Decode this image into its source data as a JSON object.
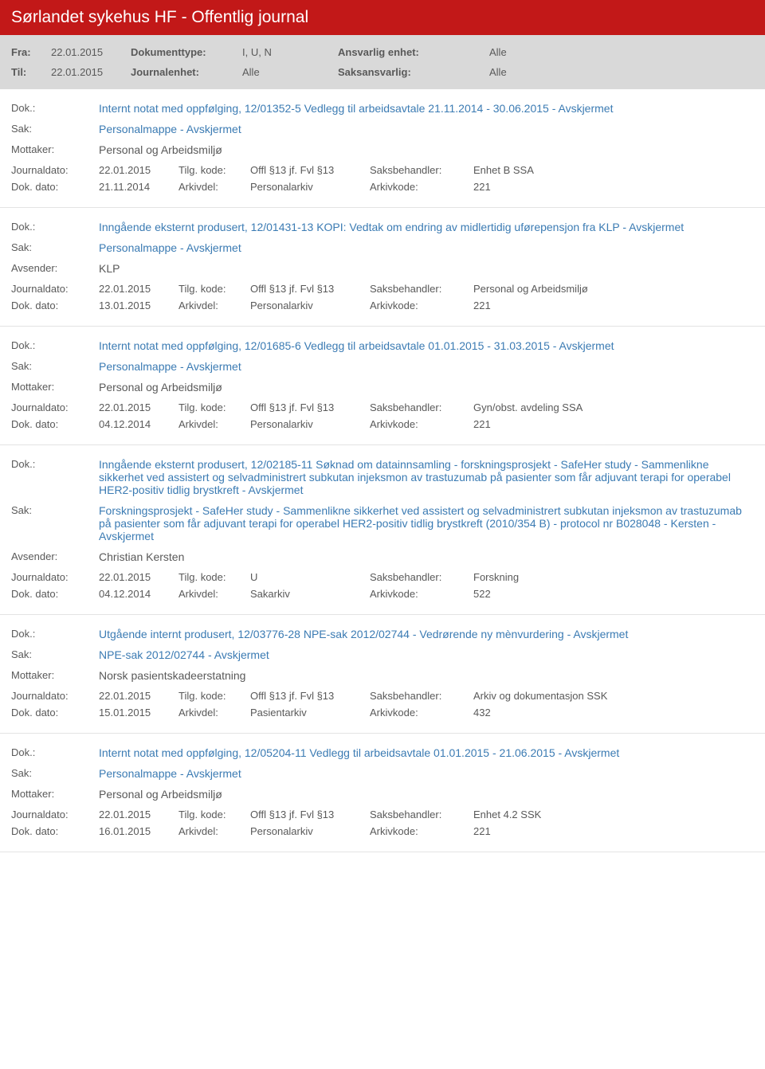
{
  "header": {
    "title": "Sørlandet sykehus HF - Offentlig journal",
    "fra_label": "Fra:",
    "fra_value": "22.01.2015",
    "til_label": "Til:",
    "til_value": "22.01.2015",
    "doktype_label": "Dokumenttype:",
    "doktype_value": "I, U, N",
    "journalenhet_label": "Journalenhet:",
    "journalenhet_value": "Alle",
    "ansvarlig_label": "Ansvarlig enhet:",
    "ansvarlig_value": "Alle",
    "saksansvarlig_label": "Saksansvarlig:",
    "saksansvarlig_value": "Alle"
  },
  "labels": {
    "dok": "Dok.:",
    "sak": "Sak:",
    "mottaker": "Mottaker:",
    "avsender": "Avsender:",
    "journaldato": "Journaldato:",
    "dokdato": "Dok. dato:",
    "tilgkode": "Tilg. kode:",
    "arkivdel": "Arkivdel:",
    "saksbehandler": "Saksbehandler:",
    "arkivkode": "Arkivkode:"
  },
  "entries": [
    {
      "dok": "Internt notat med oppfølging, 12/01352-5 Vedlegg til arbeidsavtale 21.11.2014 - 30.06.2015 - Avskjermet",
      "sak": "Personalmappe - Avskjermet",
      "party_label": "Mottaker:",
      "party_value": "Personal og Arbeidsmiljø",
      "journaldato": "22.01.2015",
      "tilgkode": "Offl §13 jf. Fvl §13",
      "saksbehandler": "Enhet B SSA",
      "dokdato": "21.11.2014",
      "arkivdel": "Personalarkiv",
      "arkivkode": "221"
    },
    {
      "dok": "Inngående eksternt produsert, 12/01431-13 KOPI: Vedtak om endring av midlertidig uførepensjon fra KLP - Avskjermet",
      "sak": "Personalmappe - Avskjermet",
      "party_label": "Avsender:",
      "party_value": "KLP",
      "journaldato": "22.01.2015",
      "tilgkode": "Offl §13 jf. Fvl §13",
      "saksbehandler": "Personal og Arbeidsmiljø",
      "dokdato": "13.01.2015",
      "arkivdel": "Personalarkiv",
      "arkivkode": "221"
    },
    {
      "dok": "Internt notat med oppfølging, 12/01685-6 Vedlegg til arbeidsavtale 01.01.2015 - 31.03.2015 - Avskjermet",
      "sak": "Personalmappe - Avskjermet",
      "party_label": "Mottaker:",
      "party_value": "Personal og Arbeidsmiljø",
      "journaldato": "22.01.2015",
      "tilgkode": "Offl §13 jf. Fvl §13",
      "saksbehandler": "Gyn/obst. avdeling SSA",
      "dokdato": "04.12.2014",
      "arkivdel": "Personalarkiv",
      "arkivkode": "221"
    },
    {
      "dok": "Inngående eksternt produsert, 12/02185-11 Søknad om datainnsamling - forskningsprosjekt - SafeHer study - Sammenlikne sikkerhet ved assistert og selvadministrert subkutan injeksmon av trastuzumab på pasienter som får adjuvant terapi for operabel HER2-positiv tidlig brystkreft - Avskjermet",
      "sak": "Forskningsprosjekt - SafeHer study - Sammenlikne sikkerhet ved assistert og selvadministrert subkutan injeksmon av trastuzumab på pasienter som får adjuvant terapi for operabel HER2-positiv tidlig brystkreft (2010/354 B) - protocol nr B028048 - Kersten - Avskjermet",
      "party_label": "Avsender:",
      "party_value": "Christian Kersten",
      "journaldato": "22.01.2015",
      "tilgkode": "U",
      "saksbehandler": "Forskning",
      "dokdato": "04.12.2014",
      "arkivdel": "Sakarkiv",
      "arkivkode": "522"
    },
    {
      "dok": "Utgående internt produsert, 12/03776-28 NPE-sak 2012/02744 - Vedrørende ny mènvurdering - Avskjermet",
      "sak": "NPE-sak 2012/02744 - Avskjermet",
      "party_label": "Mottaker:",
      "party_value": "Norsk pasientskadeerstatning",
      "journaldato": "22.01.2015",
      "tilgkode": "Offl §13 jf. Fvl §13",
      "saksbehandler": "Arkiv og dokumentasjon SSK",
      "dokdato": "15.01.2015",
      "arkivdel": "Pasientarkiv",
      "arkivkode": "432"
    },
    {
      "dok": "Internt notat med oppfølging, 12/05204-11 Vedlegg til arbeidsavtale 01.01.2015 - 21.06.2015 - Avskjermet",
      "sak": "Personalmappe - Avskjermet",
      "party_label": "Mottaker:",
      "party_value": "Personal og Arbeidsmiljø",
      "journaldato": "22.01.2015",
      "tilgkode": "Offl §13 jf. Fvl §13",
      "saksbehandler": "Enhet 4.2 SSK",
      "dokdato": "16.01.2015",
      "arkivdel": "Personalarkiv",
      "arkivkode": "221"
    }
  ]
}
